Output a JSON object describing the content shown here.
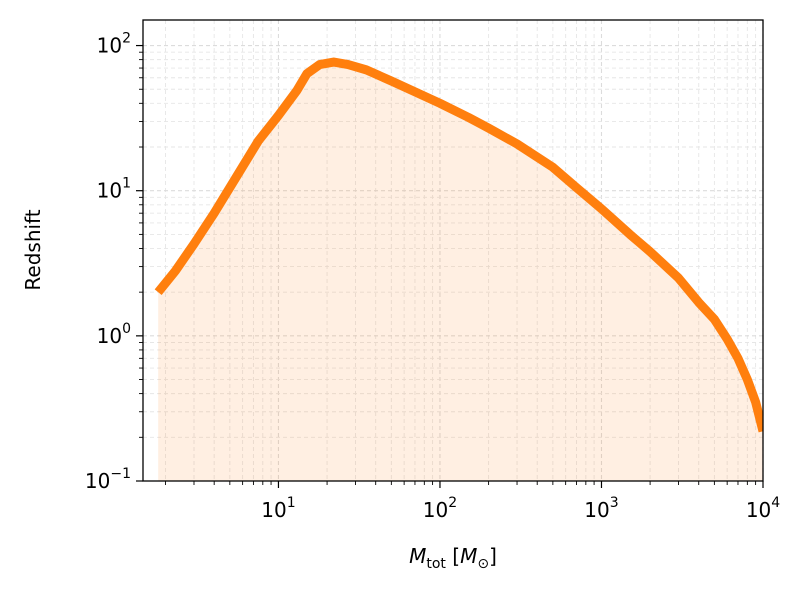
{
  "chart_data": {
    "type": "area",
    "title": "",
    "xlabel": {
      "base": "M",
      "sub": "tot",
      "unit_base": "M",
      "unit_sub": "⊙"
    },
    "ylabel": "Redshift",
    "xscale": "log",
    "yscale": "log",
    "xlim": [
      1.45,
      10000
    ],
    "ylim": [
      0.1,
      150
    ],
    "grid": true,
    "series": [
      {
        "name": "Redshift",
        "color": "#ff7f0e",
        "fill_color": "#ff7f0e",
        "x": [
          1.8,
          2.3,
          3.0,
          4.0,
          5.5,
          7.5,
          10,
          13,
          15,
          18,
          22,
          27,
          35,
          50,
          70,
          100,
          150,
          200,
          300,
          500,
          700,
          1000,
          1500,
          2000,
          3000,
          4000,
          5000,
          6000,
          7000,
          8000,
          9000,
          10000
        ],
        "y": [
          2.0,
          2.8,
          4.3,
          7.0,
          12.5,
          22,
          33,
          49,
          64,
          74,
          77,
          74,
          68,
          57,
          48,
          40,
          32,
          27,
          21,
          14.5,
          10.5,
          7.5,
          5.0,
          3.8,
          2.5,
          1.7,
          1.3,
          0.95,
          0.7,
          0.5,
          0.35,
          0.22
        ]
      }
    ],
    "x_ticks": [
      {
        "value": 10,
        "base": "10",
        "exp": "1"
      },
      {
        "value": 100,
        "base": "10",
        "exp": "2"
      },
      {
        "value": 1000,
        "base": "10",
        "exp": "3"
      },
      {
        "value": 10000,
        "base": "10",
        "exp": "4"
      }
    ],
    "y_ticks": [
      {
        "value": 0.1,
        "base": "10",
        "exp": "−1"
      },
      {
        "value": 1,
        "base": "10",
        "exp": "0"
      },
      {
        "value": 10,
        "base": "10",
        "exp": "1"
      },
      {
        "value": 100,
        "base": "10",
        "exp": "2"
      }
    ]
  }
}
